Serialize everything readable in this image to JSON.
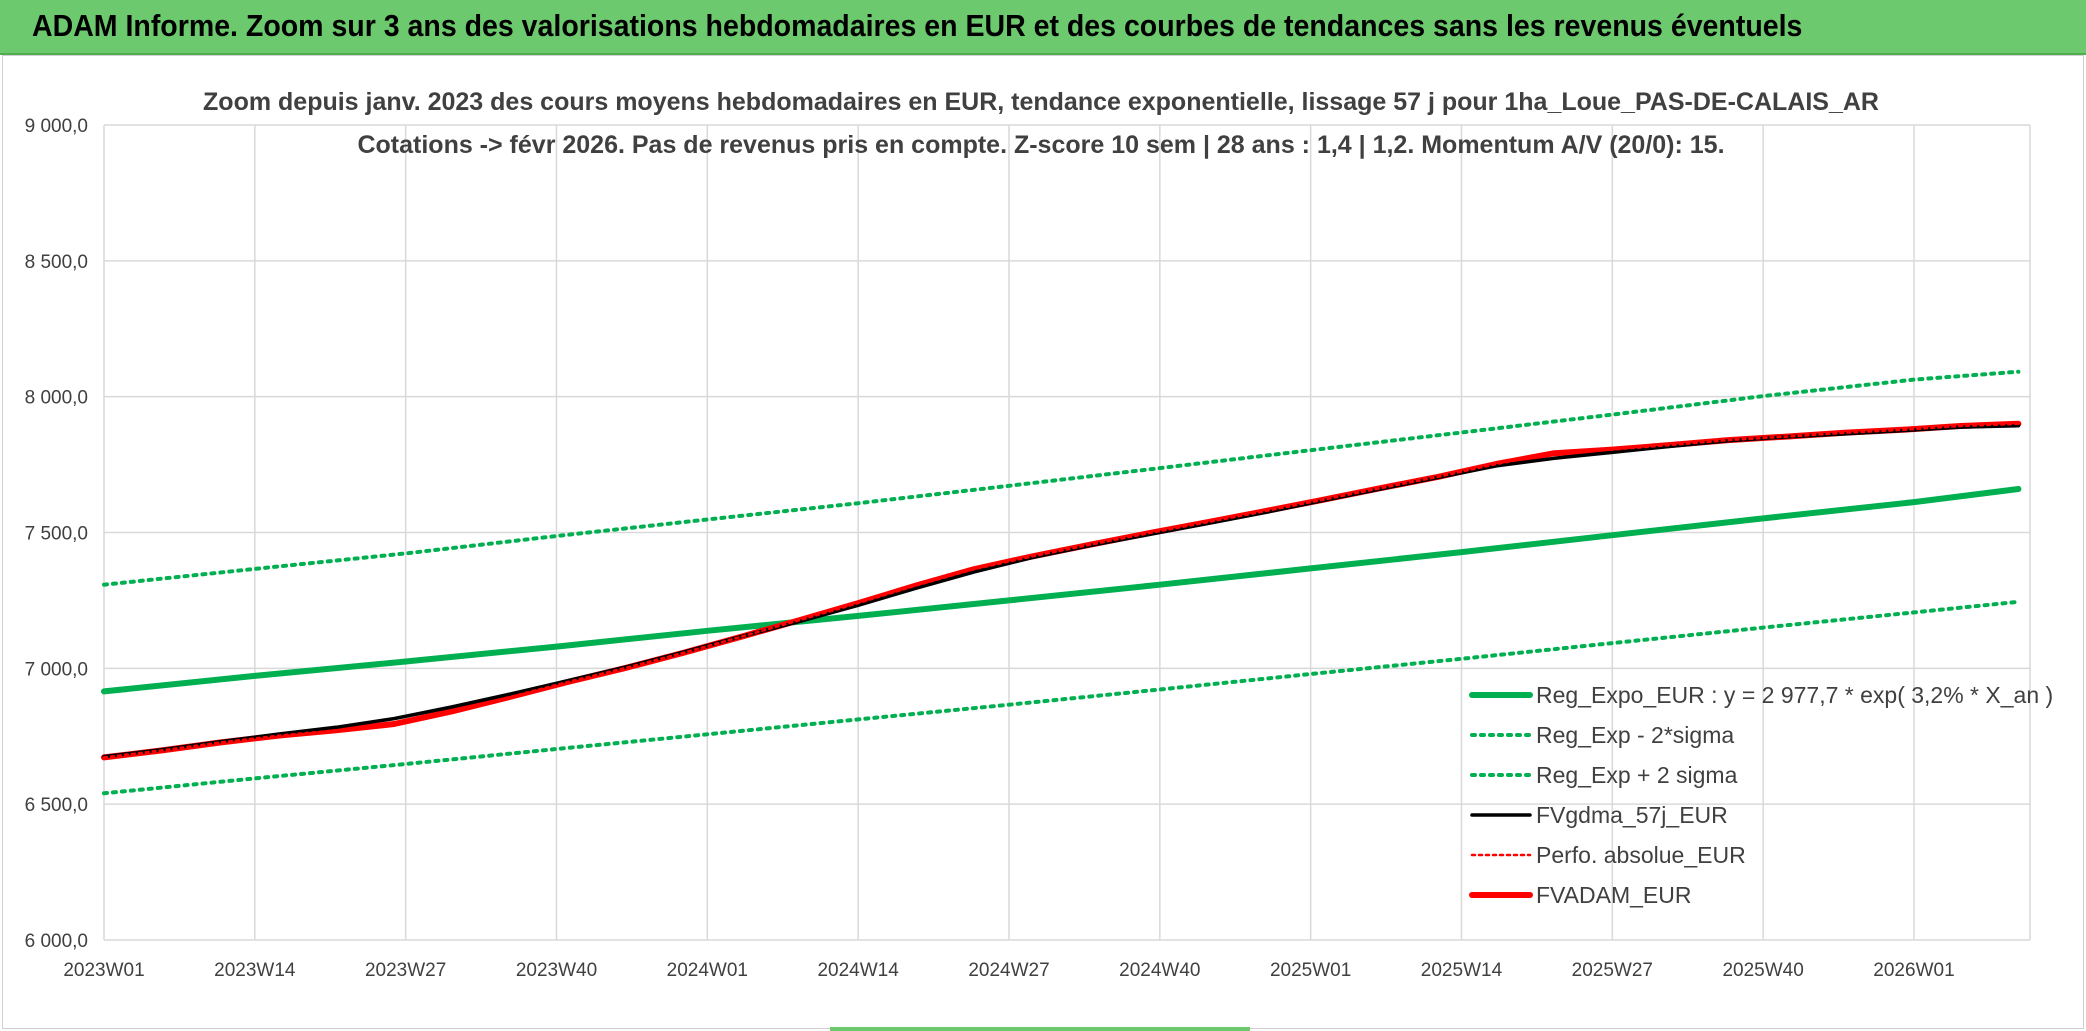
{
  "banner": {
    "title": "ADAM Informe. Zoom sur 3 ans des valorisations hebdomadaires en EUR et des courbes de tendances sans les revenus éventuels"
  },
  "colors": {
    "banner_bg": "#6cc96e",
    "reg_expo": "#00b050",
    "fvgdma": "#000000",
    "perfo": "#ff0000",
    "fvadam": "#ff0000",
    "grid": "#d9d9d9"
  },
  "chart_data": {
    "type": "line",
    "title": "Zoom depuis janv. 2023 des cours moyens hebdomadaires en EUR, tendance exponentielle, lissage 57 j pour 1ha_Loue_PAS-DE-CALAIS_AR",
    "subtitle": "Cotations -> févr 2026. Pas de revenus pris en compte. Z-score 10 sem | 28 ans : 1,4 | 1,2. Momentum A/V (20/0): 15.",
    "xlabel": "",
    "ylabel": "",
    "ylim": [
      6000,
      9000
    ],
    "yticks": [
      6000,
      6500,
      7000,
      7500,
      8000,
      8500,
      9000
    ],
    "ytick_labels": [
      "6 000,0",
      "6 500,0",
      "7 000,0",
      "7 500,0",
      "8 000,0",
      "8 500,0",
      "9 000,0"
    ],
    "xlim": [
      0,
      166
    ],
    "xticks": [
      0,
      13,
      26,
      39,
      52,
      65,
      78,
      91,
      104,
      117,
      130,
      143,
      156
    ],
    "xtick_labels": [
      "2023W01",
      "2023W14",
      "2023W27",
      "2023W40",
      "2024W01",
      "2024W14",
      "2024W27",
      "2024W40",
      "2025W01",
      "2025W14",
      "2025W27",
      "2025W40",
      "2026W01"
    ],
    "x_unit": "week index since 2023W01",
    "grid": true,
    "legend_position": "bottom-right",
    "series": [
      {
        "name": "Reg_Expo_EUR : y = 2 977,7 * exp( 3,2% *  X_an )",
        "style": "solid-thick",
        "color": "#00b050",
        "x": [
          0,
          13,
          26,
          39,
          52,
          65,
          78,
          91,
          104,
          117,
          130,
          143,
          156,
          165
        ],
        "y": [
          6915,
          6972,
          7025,
          7080,
          7138,
          7193,
          7250,
          7308,
          7368,
          7428,
          7490,
          7552,
          7612,
          7660
        ]
      },
      {
        "name": "Reg_Exp - 2*sigma",
        "style": "dotted",
        "color": "#00b050",
        "x": [
          0,
          13,
          26,
          39,
          52,
          65,
          78,
          91,
          104,
          117,
          130,
          143,
          156,
          165
        ],
        "y": [
          6540,
          6595,
          6648,
          6703,
          6757,
          6812,
          6866,
          6922,
          6979,
          7035,
          7093,
          7150,
          7206,
          7245
        ]
      },
      {
        "name": "Reg_Exp + 2 sigma",
        "style": "dotted",
        "color": "#00b050",
        "x": [
          0,
          13,
          26,
          39,
          52,
          65,
          78,
          91,
          104,
          117,
          130,
          143,
          156,
          165
        ],
        "y": [
          7308,
          7366,
          7423,
          7487,
          7548,
          7608,
          7672,
          7737,
          7803,
          7868,
          7934,
          8002,
          8063,
          8092
        ]
      },
      {
        "name": "FVgdma_57j_EUR",
        "style": "solid",
        "color": "#000000",
        "x": [
          0,
          5,
          10,
          15,
          20,
          25,
          30,
          35,
          40,
          45,
          50,
          55,
          60,
          65,
          70,
          75,
          80,
          85,
          90,
          95,
          100,
          105,
          110,
          115,
          120,
          125,
          130,
          135,
          140,
          145,
          150,
          155,
          160,
          165
        ],
        "y": [
          6675,
          6700,
          6730,
          6758,
          6783,
          6815,
          6858,
          6905,
          6955,
          7005,
          7060,
          7118,
          7173,
          7232,
          7295,
          7355,
          7408,
          7452,
          7492,
          7532,
          7573,
          7617,
          7660,
          7703,
          7745,
          7773,
          7795,
          7817,
          7838,
          7852,
          7863,
          7875,
          7888,
          7893
        ]
      },
      {
        "name": "Perfo. absolue_EUR",
        "style": "dotted-thin",
        "color": "#ff0000",
        "x": [
          0,
          5,
          10,
          15,
          20,
          25,
          30,
          35,
          40,
          45,
          50,
          55,
          60,
          65,
          70,
          75,
          80,
          85,
          90,
          95,
          100,
          105,
          110,
          115,
          120,
          125,
          130,
          135,
          140,
          145,
          150,
          155,
          160,
          165
        ],
        "y": [
          6672,
          6698,
          6727,
          6752,
          6772,
          6795,
          6842,
          6895,
          6950,
          7002,
          7058,
          7117,
          7178,
          7240,
          7305,
          7365,
          7412,
          7455,
          7497,
          7537,
          7578,
          7620,
          7663,
          7705,
          7752,
          7792,
          7805,
          7822,
          7840,
          7853,
          7867,
          7878,
          7892,
          7900
        ]
      },
      {
        "name": "FVADAM_EUR",
        "style": "solid-thick",
        "color": "#ff0000",
        "x": [
          0,
          5,
          10,
          15,
          20,
          25,
          30,
          35,
          40,
          45,
          50,
          55,
          60,
          65,
          70,
          75,
          80,
          85,
          90,
          95,
          100,
          105,
          110,
          115,
          120,
          125,
          130,
          135,
          140,
          145,
          150,
          155,
          160,
          165
        ],
        "y": [
          6672,
          6698,
          6727,
          6752,
          6772,
          6795,
          6842,
          6895,
          6950,
          7002,
          7058,
          7117,
          7178,
          7240,
          7305,
          7365,
          7412,
          7455,
          7497,
          7537,
          7578,
          7620,
          7663,
          7705,
          7752,
          7792,
          7805,
          7822,
          7840,
          7853,
          7867,
          7878,
          7892,
          7900
        ]
      }
    ]
  }
}
